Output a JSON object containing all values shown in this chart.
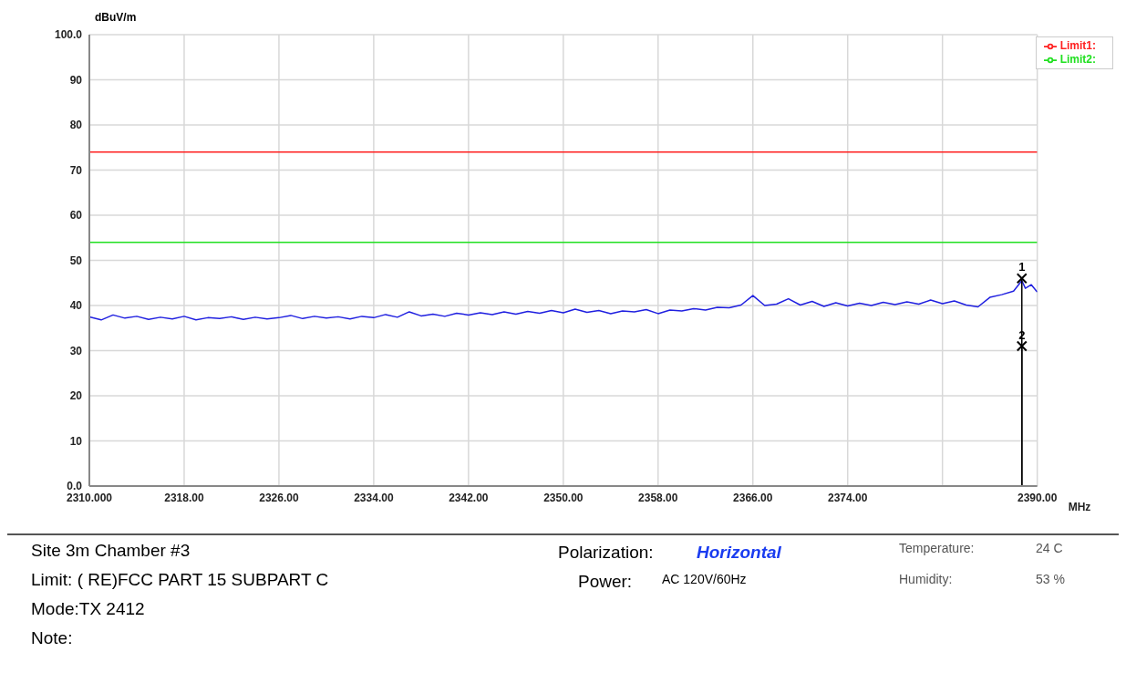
{
  "chart_data": {
    "type": "line",
    "xlabel": "MHz",
    "ylabel": "dBuV/m",
    "xlim": [
      2310,
      2390
    ],
    "xticks": [
      {
        "value": 2310,
        "label": "2310.000"
      },
      {
        "value": 2318,
        "label": "2318.00"
      },
      {
        "value": 2326,
        "label": "2326.00"
      },
      {
        "value": 2334,
        "label": "2334.00"
      },
      {
        "value": 2342,
        "label": "2342.00"
      },
      {
        "value": 2350,
        "label": "2350.00"
      },
      {
        "value": 2358,
        "label": "2358.00"
      },
      {
        "value": 2366,
        "label": "2366.00"
      },
      {
        "value": 2374,
        "label": "2374.00"
      },
      {
        "value": 2382,
        "label": null
      },
      {
        "value": 2390,
        "label": "2390.00"
      }
    ],
    "ylim": [
      0,
      100
    ],
    "yticks": [
      {
        "value": 0,
        "label": "0.0"
      },
      10,
      20,
      30,
      40,
      50,
      60,
      70,
      80,
      90,
      {
        "value": 100,
        "label": "100.0"
      }
    ],
    "grid": true,
    "legend": "top right",
    "line_style": "solid",
    "marker": "none",
    "series": [
      {
        "color": "#2020e0",
        "x": [
          2310,
          2311,
          2312,
          2313,
          2314,
          2315,
          2316,
          2317,
          2318,
          2319,
          2320,
          2321,
          2322,
          2323,
          2324,
          2325,
          2326,
          2327,
          2328,
          2329,
          2330,
          2331,
          2332,
          2333,
          2334,
          2335,
          2336,
          2337,
          2338,
          2339,
          2340,
          2341,
          2342,
          2343,
          2344,
          2345,
          2346,
          2347,
          2348,
          2349,
          2350,
          2351,
          2352,
          2353,
          2354,
          2355,
          2356,
          2357,
          2358,
          2359,
          2360,
          2361,
          2362,
          2363,
          2364,
          2365,
          2366,
          2367,
          2368,
          2369,
          2370,
          2371,
          2372,
          2373,
          2374,
          2375,
          2376,
          2377,
          2378,
          2379,
          2380,
          2381,
          2382,
          2383,
          2384,
          2385,
          2386,
          2387,
          2388,
          2388.7,
          2389,
          2389.5,
          2390
        ],
        "values": [
          37.5,
          36.8,
          37.9,
          37.2,
          37.6,
          36.9,
          37.4,
          37.0,
          37.6,
          36.8,
          37.3,
          37.1,
          37.5,
          36.9,
          37.4,
          37.0,
          37.3,
          37.8,
          37.1,
          37.6,
          37.2,
          37.5,
          37.0,
          37.6,
          37.3,
          38.0,
          37.4,
          38.6,
          37.7,
          38.1,
          37.6,
          38.3,
          37.9,
          38.4,
          38.0,
          38.6,
          38.1,
          38.7,
          38.3,
          38.9,
          38.4,
          39.2,
          38.5,
          38.9,
          38.2,
          38.8,
          38.6,
          39.1,
          38.2,
          39.0,
          38.8,
          39.3,
          39.0,
          39.6,
          39.5,
          40.1,
          42.2,
          40.0,
          40.3,
          41.5,
          40.1,
          40.9,
          39.8,
          40.6,
          39.9,
          40.5,
          40.0,
          40.7,
          40.2,
          40.8,
          40.3,
          41.2,
          40.4,
          41.0,
          40.1,
          39.7,
          41.8,
          42.4,
          43.2,
          45.5,
          43.8,
          44.6,
          43.0
        ]
      },
      {
        "name": "Limit1:",
        "color": "#ff2020",
        "x": [
          2310,
          2390
        ],
        "values": [
          74,
          74
        ]
      },
      {
        "name": "Limit2:",
        "color": "#20e020",
        "x": [
          2310,
          2390
        ],
        "values": [
          54,
          54
        ]
      },
      {
        "type": "lollipop",
        "marker": "cross",
        "color": "#000000",
        "x": [
          2388.7,
          2388.7
        ],
        "values": [
          46,
          31
        ]
      }
    ],
    "annotations": [
      {
        "text": "1",
        "x": 2388.7,
        "y": 46
      },
      {
        "text": "2",
        "x": 2388.7,
        "y": 31
      },
      "Site  3m Chamber #3",
      "Limit:  ( RE)FCC PART 15 SUBPART C",
      "Mode:TX 2412",
      "Note:",
      "Polarization:",
      "Horizontal",
      "Power:",
      "AC 120V/60Hz",
      "Temperature:",
      "24 C",
      "Humidity:",
      "53 %"
    ]
  }
}
